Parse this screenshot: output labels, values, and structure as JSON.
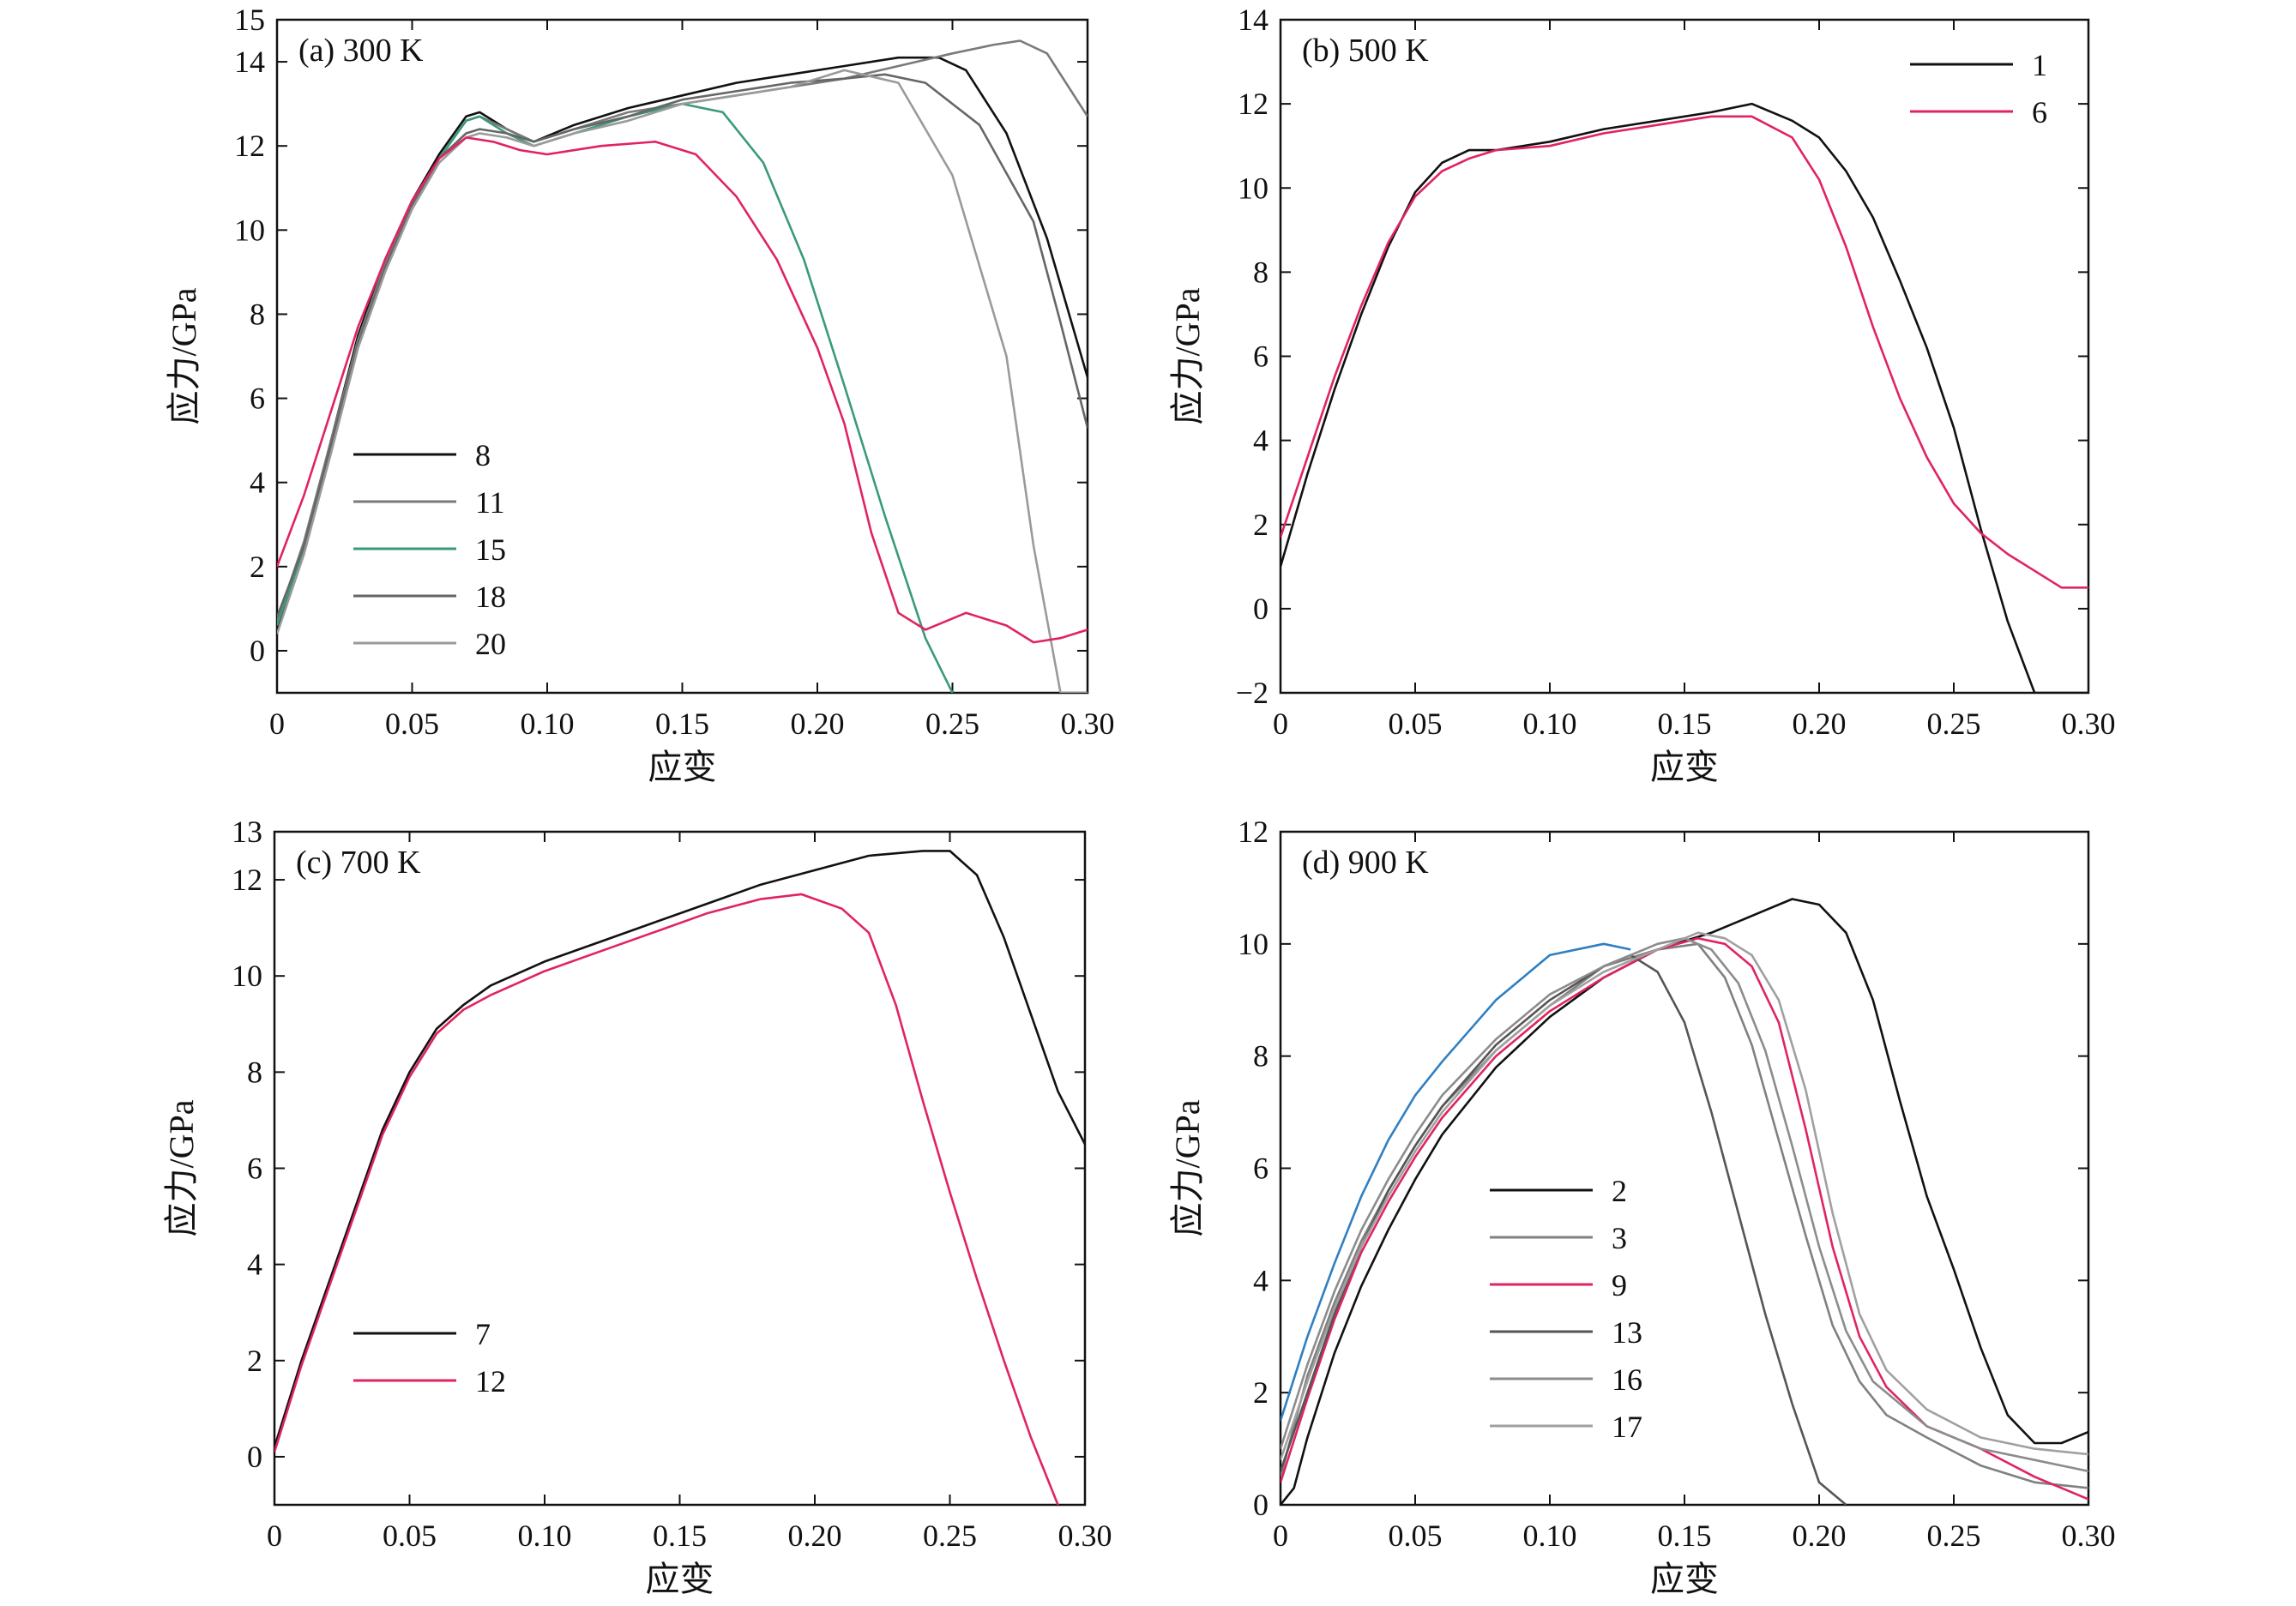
{
  "chart_data": [
    {
      "type": "line",
      "panel_label": "(a) 300 K",
      "xlabel": "应变",
      "ylabel": "应力/GPa",
      "xlim": [
        0,
        0.3
      ],
      "ylim": [
        -1,
        15
      ],
      "xticks": [
        0,
        0.05,
        0.1,
        0.15,
        0.2,
        0.25,
        0.3
      ],
      "xtick_labels": [
        "0",
        "0.05",
        "0.10",
        "0.15",
        "0.20",
        "0.25",
        "0.30"
      ],
      "yticks": [
        0,
        2,
        4,
        6,
        8,
        10,
        12,
        14,
        15
      ],
      "ytick_labels": [
        "0",
        "2",
        "4",
        "6",
        "8",
        "10",
        "12",
        "14",
        "15"
      ],
      "legend": "lower-left",
      "grid": false,
      "series": [
        {
          "name": "8",
          "color": "#111111",
          "x": [
            0,
            0.01,
            0.02,
            0.03,
            0.04,
            0.05,
            0.06,
            0.07,
            0.075,
            0.085,
            0.095,
            0.11,
            0.13,
            0.15,
            0.17,
            0.19,
            0.21,
            0.23,
            0.245,
            0.255,
            0.27,
            0.285,
            0.3
          ],
          "y": [
            0.5,
            2.5,
            5.0,
            7.5,
            9.3,
            10.7,
            11.8,
            12.7,
            12.8,
            12.4,
            12.1,
            12.5,
            12.9,
            13.2,
            13.5,
            13.7,
            13.9,
            14.1,
            14.1,
            13.8,
            12.3,
            9.8,
            6.5
          ]
        },
        {
          "name": "11",
          "color": "#7a7a7a",
          "x": [
            0,
            0.01,
            0.02,
            0.03,
            0.04,
            0.05,
            0.06,
            0.07,
            0.075,
            0.085,
            0.095,
            0.11,
            0.13,
            0.15,
            0.17,
            0.19,
            0.21,
            0.23,
            0.25,
            0.265,
            0.275,
            0.285,
            0.3
          ],
          "y": [
            0.7,
            2.6,
            5.0,
            7.4,
            9.2,
            10.6,
            11.7,
            12.6,
            12.7,
            12.4,
            12.1,
            12.4,
            12.8,
            13.0,
            13.2,
            13.4,
            13.6,
            13.9,
            14.2,
            14.4,
            14.5,
            14.2,
            12.7
          ]
        },
        {
          "name": "15",
          "color": "#3a9a7a",
          "x": [
            0,
            0.01,
            0.02,
            0.03,
            0.04,
            0.05,
            0.06,
            0.07,
            0.075,
            0.085,
            0.095,
            0.11,
            0.13,
            0.15,
            0.165,
            0.18,
            0.195,
            0.21,
            0.225,
            0.24,
            0.25
          ],
          "y": [
            0.6,
            2.4,
            4.8,
            7.3,
            9.1,
            10.5,
            11.7,
            12.6,
            12.7,
            12.3,
            12.0,
            12.3,
            12.7,
            13.0,
            12.8,
            11.6,
            9.3,
            6.3,
            3.2,
            0.3,
            -1.0
          ]
        },
        {
          "name": "18",
          "color": "#666666",
          "x": [
            0,
            0.01,
            0.02,
            0.03,
            0.04,
            0.05,
            0.06,
            0.07,
            0.075,
            0.085,
            0.095,
            0.11,
            0.13,
            0.15,
            0.17,
            0.19,
            0.21,
            0.225,
            0.24,
            0.26,
            0.28,
            0.29,
            0.3
          ],
          "y": [
            0.8,
            2.5,
            4.9,
            7.3,
            9.1,
            10.6,
            11.7,
            12.3,
            12.4,
            12.3,
            12.1,
            12.4,
            12.7,
            13.1,
            13.3,
            13.5,
            13.6,
            13.7,
            13.5,
            12.5,
            10.2,
            7.8,
            5.3
          ]
        },
        {
          "name": "20",
          "color": "#9a9a9a",
          "x": [
            0,
            0.01,
            0.02,
            0.03,
            0.04,
            0.05,
            0.06,
            0.07,
            0.075,
            0.085,
            0.095,
            0.11,
            0.13,
            0.15,
            0.17,
            0.19,
            0.21,
            0.23,
            0.25,
            0.27,
            0.28,
            0.29,
            0.3
          ],
          "y": [
            0.4,
            2.3,
            4.7,
            7.2,
            9.0,
            10.5,
            11.6,
            12.2,
            12.3,
            12.2,
            12.0,
            12.3,
            12.6,
            13.0,
            13.2,
            13.4,
            13.8,
            13.5,
            11.3,
            7.0,
            2.5,
            -1.0,
            -1.0
          ]
        },
        {
          "name": "",
          "color": "#e0245e",
          "x": [
            0,
            0.01,
            0.02,
            0.03,
            0.04,
            0.05,
            0.06,
            0.07,
            0.08,
            0.09,
            0.1,
            0.12,
            0.14,
            0.155,
            0.17,
            0.185,
            0.2,
            0.21,
            0.22,
            0.23,
            0.24,
            0.255,
            0.27,
            0.28,
            0.29,
            0.3
          ],
          "y": [
            2.0,
            3.7,
            5.7,
            7.7,
            9.3,
            10.7,
            11.7,
            12.2,
            12.1,
            11.9,
            11.8,
            12.0,
            12.1,
            11.8,
            10.8,
            9.3,
            7.2,
            5.4,
            2.8,
            0.9,
            0.5,
            0.9,
            0.6,
            0.2,
            0.3,
            0.5
          ]
        }
      ]
    },
    {
      "type": "line",
      "panel_label": "(b) 500 K",
      "xlabel": "应变",
      "ylabel": "应力/GPa",
      "xlim": [
        0,
        0.3
      ],
      "ylim": [
        -2,
        14
      ],
      "xticks": [
        0,
        0.05,
        0.1,
        0.15,
        0.2,
        0.25,
        0.3
      ],
      "xtick_labels": [
        "0",
        "0.05",
        "0.10",
        "0.15",
        "0.20",
        "0.25",
        "0.30"
      ],
      "yticks": [
        -2,
        0,
        2,
        4,
        6,
        8,
        10,
        12,
        14
      ],
      "ytick_labels": [
        "−2",
        "0",
        "2",
        "4",
        "6",
        "8",
        "10",
        "12",
        "14"
      ],
      "legend": "top-right",
      "grid": false,
      "series": [
        {
          "name": "1",
          "color": "#111111",
          "x": [
            0,
            0.01,
            0.02,
            0.03,
            0.04,
            0.05,
            0.06,
            0.07,
            0.08,
            0.1,
            0.12,
            0.14,
            0.16,
            0.175,
            0.19,
            0.2,
            0.21,
            0.22,
            0.23,
            0.24,
            0.25,
            0.26,
            0.27,
            0.28,
            0.29,
            0.3
          ],
          "y": [
            1.0,
            3.2,
            5.2,
            7.0,
            8.6,
            9.9,
            10.6,
            10.9,
            10.9,
            11.1,
            11.4,
            11.6,
            11.8,
            12.0,
            11.6,
            11.2,
            10.4,
            9.3,
            7.8,
            6.2,
            4.3,
            1.9,
            -0.3,
            -2.0,
            -2.0,
            -2.0
          ]
        },
        {
          "name": "6",
          "color": "#e0245e",
          "x": [
            0,
            0.01,
            0.02,
            0.03,
            0.04,
            0.05,
            0.06,
            0.07,
            0.08,
            0.1,
            0.12,
            0.14,
            0.16,
            0.175,
            0.19,
            0.2,
            0.21,
            0.22,
            0.23,
            0.24,
            0.25,
            0.26,
            0.27,
            0.28,
            0.29,
            0.3
          ],
          "y": [
            1.7,
            3.6,
            5.5,
            7.2,
            8.7,
            9.8,
            10.4,
            10.7,
            10.9,
            11.0,
            11.3,
            11.5,
            11.7,
            11.7,
            11.2,
            10.2,
            8.6,
            6.7,
            5.0,
            3.6,
            2.5,
            1.8,
            1.3,
            0.9,
            0.5,
            0.5
          ]
        }
      ]
    },
    {
      "type": "line",
      "panel_label": "(c) 700 K",
      "xlabel": "应变",
      "ylabel": "应力/GPa",
      "xlim": [
        0,
        0.3
      ],
      "ylim": [
        -1,
        13
      ],
      "xticks": [
        0,
        0.05,
        0.1,
        0.15,
        0.2,
        0.25,
        0.3
      ],
      "xtick_labels": [
        "0",
        "0.05",
        "0.10",
        "0.15",
        "0.20",
        "0.25",
        "0.30"
      ],
      "yticks": [
        0,
        2,
        4,
        6,
        8,
        10,
        12,
        13
      ],
      "ytick_labels": [
        "0",
        "2",
        "4",
        "6",
        "8",
        "10",
        "12",
        "13"
      ],
      "legend": "lower-left",
      "grid": false,
      "series": [
        {
          "name": "7",
          "color": "#111111",
          "x": [
            0,
            0.01,
            0.02,
            0.03,
            0.04,
            0.05,
            0.06,
            0.07,
            0.08,
            0.1,
            0.12,
            0.14,
            0.16,
            0.18,
            0.2,
            0.22,
            0.24,
            0.25,
            0.26,
            0.27,
            0.28,
            0.29,
            0.3
          ],
          "y": [
            0.2,
            2.0,
            3.6,
            5.2,
            6.8,
            8.0,
            8.9,
            9.4,
            9.8,
            10.3,
            10.7,
            11.1,
            11.5,
            11.9,
            12.2,
            12.5,
            12.6,
            12.6,
            12.1,
            10.8,
            9.2,
            7.6,
            6.5
          ]
        },
        {
          "name": "12",
          "color": "#e0245e",
          "x": [
            0,
            0.01,
            0.02,
            0.03,
            0.04,
            0.05,
            0.06,
            0.07,
            0.08,
            0.1,
            0.12,
            0.14,
            0.16,
            0.18,
            0.195,
            0.21,
            0.22,
            0.23,
            0.24,
            0.25,
            0.26,
            0.27,
            0.28,
            0.29
          ],
          "y": [
            0.1,
            1.9,
            3.5,
            5.1,
            6.7,
            7.9,
            8.8,
            9.3,
            9.6,
            10.1,
            10.5,
            10.9,
            11.3,
            11.6,
            11.7,
            11.4,
            10.9,
            9.4,
            7.4,
            5.5,
            3.7,
            2.0,
            0.4,
            -1.0
          ]
        }
      ]
    },
    {
      "type": "line",
      "panel_label": "(d) 900 K",
      "xlabel": "应变",
      "ylabel": "应力/GPa",
      "xlim": [
        0,
        0.3
      ],
      "ylim": [
        0,
        12
      ],
      "xticks": [
        0,
        0.05,
        0.1,
        0.15,
        0.2,
        0.25,
        0.3
      ],
      "xtick_labels": [
        "0",
        "0.05",
        "0.10",
        "0.15",
        "0.20",
        "0.25",
        "0.30"
      ],
      "yticks": [
        0,
        2,
        4,
        6,
        8,
        10,
        12
      ],
      "ytick_labels": [
        "0",
        "2",
        "4",
        "6",
        "8",
        "10",
        "12"
      ],
      "legend": "lower-left",
      "grid": false,
      "series": [
        {
          "name": "2",
          "color": "#111111",
          "x": [
            0,
            0.005,
            0.01,
            0.02,
            0.03,
            0.04,
            0.05,
            0.06,
            0.08,
            0.1,
            0.12,
            0.14,
            0.16,
            0.18,
            0.19,
            0.2,
            0.21,
            0.22,
            0.23,
            0.24,
            0.25,
            0.26,
            0.27,
            0.28,
            0.29,
            0.3
          ],
          "y": [
            0.0,
            0.3,
            1.2,
            2.7,
            3.9,
            4.9,
            5.8,
            6.6,
            7.8,
            8.7,
            9.4,
            9.9,
            10.2,
            10.6,
            10.8,
            10.7,
            10.2,
            9.0,
            7.2,
            5.5,
            4.2,
            2.8,
            1.6,
            1.1,
            1.1,
            1.3
          ]
        },
        {
          "name": "3",
          "color": "#808080",
          "x": [
            0,
            0.01,
            0.02,
            0.03,
            0.04,
            0.05,
            0.06,
            0.08,
            0.1,
            0.12,
            0.14,
            0.155,
            0.165,
            0.175,
            0.185,
            0.195,
            0.205,
            0.215,
            0.225,
            0.24,
            0.26,
            0.28,
            0.3
          ],
          "y": [
            0.5,
            2.3,
            3.6,
            4.7,
            5.6,
            6.4,
            7.1,
            8.1,
            8.9,
            9.6,
            9.9,
            10.0,
            9.4,
            8.2,
            6.5,
            4.8,
            3.2,
            2.2,
            1.6,
            1.2,
            0.7,
            0.4,
            0.3
          ]
        },
        {
          "name": "9",
          "color": "#e0245e",
          "x": [
            0,
            0.01,
            0.02,
            0.03,
            0.04,
            0.05,
            0.06,
            0.08,
            0.1,
            0.12,
            0.14,
            0.155,
            0.165,
            0.175,
            0.185,
            0.195,
            0.205,
            0.215,
            0.225,
            0.24,
            0.26,
            0.28,
            0.3
          ],
          "y": [
            0.4,
            1.9,
            3.3,
            4.5,
            5.4,
            6.2,
            6.9,
            8.0,
            8.8,
            9.4,
            9.9,
            10.1,
            10.0,
            9.6,
            8.6,
            6.7,
            4.6,
            3.0,
            2.1,
            1.4,
            1.0,
            0.5,
            0.1
          ]
        },
        {
          "name": "13",
          "color": "#555555",
          "x": [
            0,
            0.01,
            0.02,
            0.03,
            0.04,
            0.05,
            0.06,
            0.08,
            0.1,
            0.12,
            0.13,
            0.14,
            0.15,
            0.16,
            0.17,
            0.18,
            0.19,
            0.2,
            0.21
          ],
          "y": [
            0.6,
            2.0,
            3.4,
            4.6,
            5.6,
            6.4,
            7.1,
            8.2,
            9.0,
            9.6,
            9.8,
            9.5,
            8.6,
            7.0,
            5.2,
            3.4,
            1.8,
            0.4,
            0.0
          ]
        },
        {
          "name": "16",
          "color": "#8c8c8c",
          "x": [
            0,
            0.01,
            0.02,
            0.03,
            0.04,
            0.05,
            0.06,
            0.08,
            0.1,
            0.12,
            0.14,
            0.15,
            0.16,
            0.17,
            0.18,
            0.19,
            0.2,
            0.21,
            0.22,
            0.24,
            0.26,
            0.28,
            0.3
          ],
          "y": [
            1.0,
            2.5,
            3.8,
            4.9,
            5.8,
            6.6,
            7.3,
            8.3,
            9.1,
            9.6,
            10.0,
            10.1,
            9.9,
            9.3,
            8.1,
            6.4,
            4.6,
            3.1,
            2.2,
            1.4,
            1.0,
            0.8,
            0.6
          ]
        },
        {
          "name": "17",
          "color": "#a0a0a0",
          "x": [
            0,
            0.01,
            0.02,
            0.03,
            0.04,
            0.05,
            0.06,
            0.08,
            0.1,
            0.12,
            0.14,
            0.155,
            0.165,
            0.175,
            0.185,
            0.195,
            0.205,
            0.215,
            0.225,
            0.24,
            0.26,
            0.28,
            0.3
          ],
          "y": [
            0.8,
            2.2,
            3.5,
            4.6,
            5.5,
            6.3,
            7.0,
            8.1,
            8.9,
            9.5,
            9.9,
            10.2,
            10.1,
            9.8,
            9.0,
            7.4,
            5.2,
            3.4,
            2.4,
            1.7,
            1.2,
            1.0,
            0.9
          ]
        },
        {
          "name": "",
          "color": "#2f7fc1",
          "x": [
            0,
            0.01,
            0.02,
            0.03,
            0.04,
            0.05,
            0.06,
            0.08,
            0.1,
            0.12,
            0.13
          ],
          "y": [
            1.5,
            3.0,
            4.3,
            5.5,
            6.5,
            7.3,
            7.9,
            9.0,
            9.8,
            10.0,
            9.9
          ]
        }
      ]
    }
  ]
}
